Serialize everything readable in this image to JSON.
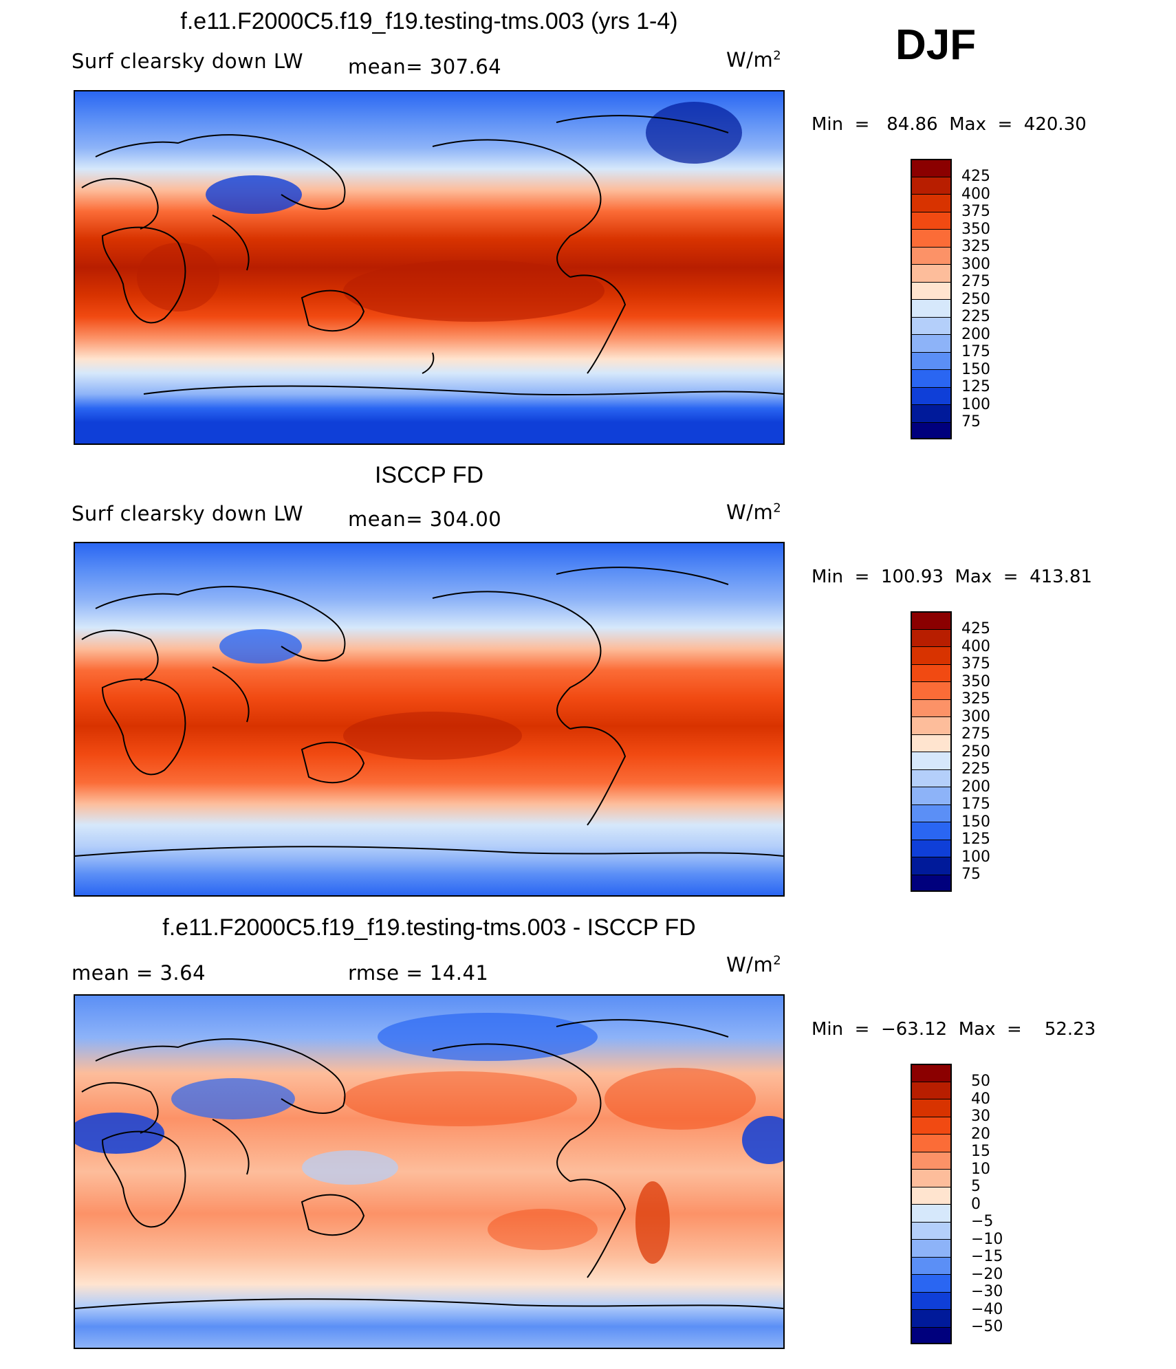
{
  "season": "DJF",
  "units_base": "W/m",
  "units_exp": "2",
  "chart_data": [
    {
      "type": "heatmap",
      "title": "f.e11.F2000C5.f19_f19.testing-tms.003 (yrs 1-4)",
      "variable": "Surf clearsky down LW",
      "stat_text": "mean=  307.64",
      "minmax_text": "Min  =   84.86  Max  =  420.30",
      "levels": [
        "425",
        "400",
        "375",
        "350",
        "325",
        "300",
        "275",
        "250",
        "225",
        "200",
        "175",
        "150",
        "125",
        "100",
        "75"
      ],
      "colors": [
        "#8b0000",
        "#b81e00",
        "#d83300",
        "#f14a12",
        "#fb6c37",
        "#fc9267",
        "#fdbd9b",
        "#ffe4cf",
        "#d6e8fb",
        "#b4cffa",
        "#8db3f8",
        "#5b8ff6",
        "#2a66f2",
        "#0f3fd8",
        "#001a9a",
        "#00007d"
      ]
    },
    {
      "type": "heatmap",
      "title": "ISCCP FD",
      "variable": "Surf clearsky down LW",
      "stat_text": "mean=  304.00",
      "minmax_text": "Min  =  100.93  Max  =  413.81",
      "levels": [
        "425",
        "400",
        "375",
        "350",
        "325",
        "300",
        "275",
        "250",
        "225",
        "200",
        "175",
        "150",
        "125",
        "100",
        "75"
      ],
      "colors": [
        "#8b0000",
        "#b81e00",
        "#d83300",
        "#f14a12",
        "#fb6c37",
        "#fc9267",
        "#fdbd9b",
        "#ffe4cf",
        "#d6e8fb",
        "#b4cffa",
        "#8db3f8",
        "#5b8ff6",
        "#2a66f2",
        "#0f3fd8",
        "#001a9a",
        "#00007d"
      ]
    },
    {
      "type": "heatmap",
      "title": "f.e11.F2000C5.f19_f19.testing-tms.003 - ISCCP FD",
      "variable": "",
      "stat_text": "mean  =     3.64",
      "rmse_text": "rmse  =    14.41",
      "minmax_text": "Min  =  −63.12  Max  =    52.23",
      "levels": [
        "50",
        "40",
        "30",
        "20",
        "15",
        "10",
        "5",
        "0",
        "−5",
        "−10",
        "−15",
        "−20",
        "−30",
        "−40",
        "−50"
      ],
      "colors": [
        "#8b0000",
        "#b81e00",
        "#d83300",
        "#f14a12",
        "#fb6c37",
        "#fc9267",
        "#fdbd9b",
        "#ffe4cf",
        "#d6e8fb",
        "#b4cffa",
        "#8db3f8",
        "#5b8ff6",
        "#2a66f2",
        "#0f3fd8",
        "#001a9a",
        "#00007d"
      ]
    }
  ]
}
